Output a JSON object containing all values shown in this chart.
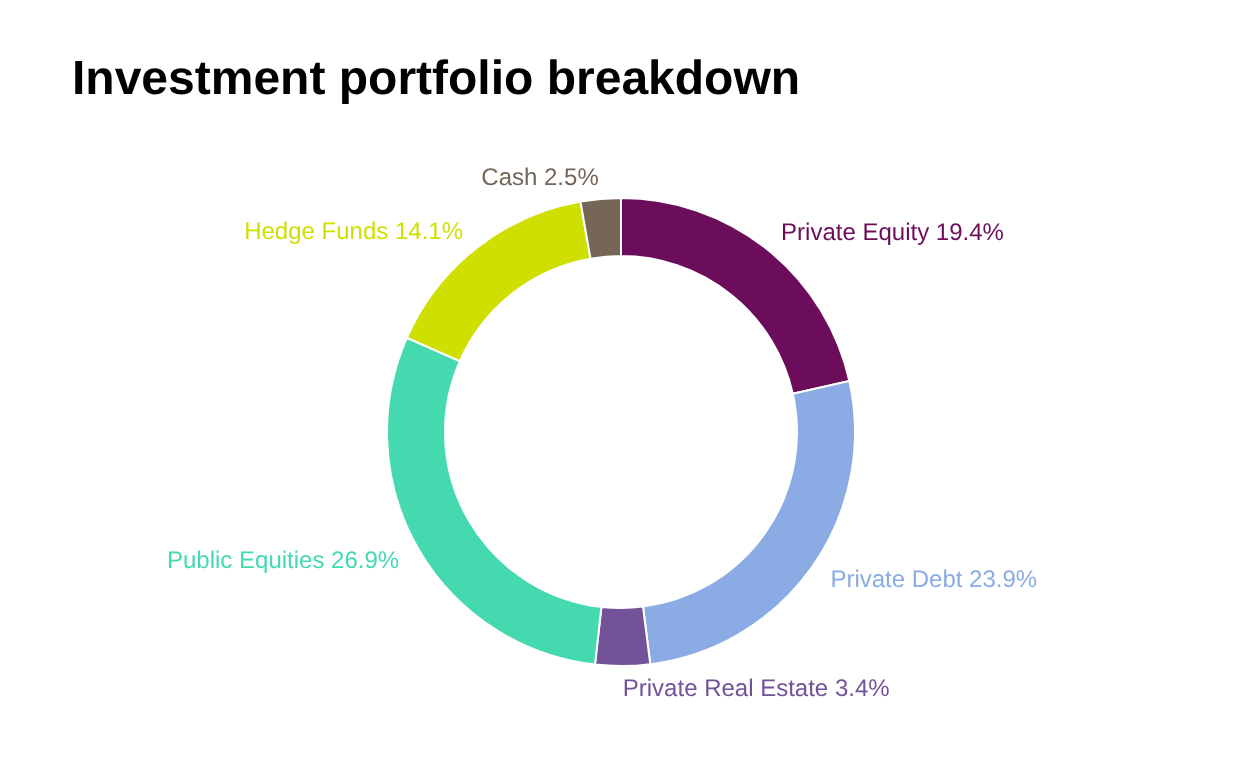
{
  "chart_data": {
    "type": "donut",
    "title": "Investment portfolio breakdown",
    "categories": [
      "Private Equity",
      "Private Debt",
      "Private Real Estate",
      "Public Equities",
      "Hedge Funds",
      "Cash"
    ],
    "values": [
      19.4,
      23.9,
      3.4,
      26.9,
      14.1,
      2.5
    ],
    "value_labels": [
      "19.4%",
      "23.9%",
      "3.4%",
      "26.9%",
      "14.1%",
      "2.5%"
    ],
    "colors": [
      "#6b0d5a",
      "#8aabe3",
      "#72539a",
      "#45d9b0",
      "#cfdf00",
      "#756658"
    ],
    "legend": false
  }
}
